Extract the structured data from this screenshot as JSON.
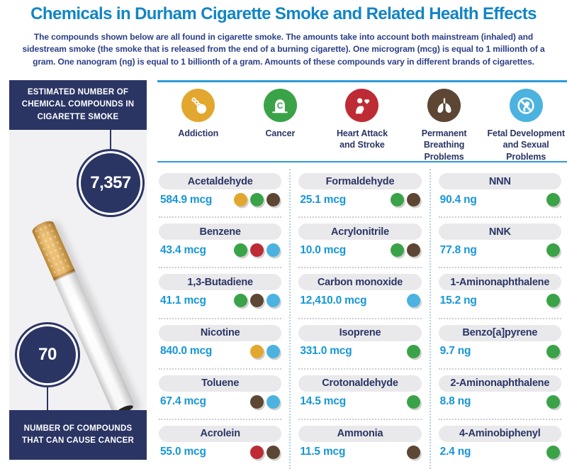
{
  "header": {
    "title": "Chemicals in Durham Cigarette Smoke and Related Health Effects",
    "description": "The compounds shown below are all found in cigarette smoke. The amounts take into account both mainstream (inhaled) and sidestream smoke (the smoke that is released from the end of a burning cigarette). One microgram (mcg) is equal to 1 millionth of a gram. One nanogram (ng) is equal to 1 billionth of a gram. Amounts of these compounds vary in different brands of cigarettes."
  },
  "sidebar": {
    "top_box_label": "ESTIMATED NUMBER OF CHEMICAL COMPOUNDS IN CIGARETTE SMOKE",
    "compound_count": "7,357",
    "carcinogen_count": "70",
    "bottom_box_label": "NUMBER OF COMPOUNDS THAT CAN CAUSE CANCER"
  },
  "effect_colors": {
    "addiction": "#E2A72E",
    "cancer": "#3AA348",
    "heart": "#BE2B35",
    "breathing": "#5D4633",
    "fetal": "#4CB2E0"
  },
  "legend": {
    "items": [
      {
        "id": "addiction",
        "label": "Addiction"
      },
      {
        "id": "cancer",
        "label": "Cancer"
      },
      {
        "id": "heart",
        "label": "Heart Attack\nand Stroke"
      },
      {
        "id": "breathing",
        "label": "Permanent\nBreathing\nProblems"
      },
      {
        "id": "fetal",
        "label": "Fetal Development\nand Sexual\nProblems"
      }
    ]
  },
  "columns": [
    {
      "items": [
        {
          "name": "Acetaldehyde",
          "amount": "584.9 mcg",
          "effects": [
            "addiction",
            "cancer",
            "breathing"
          ]
        },
        {
          "name": "Benzene",
          "amount": "43.4 mcg",
          "effects": [
            "cancer",
            "heart",
            "fetal"
          ]
        },
        {
          "name": "1,3-Butadiene",
          "amount": "41.1 mcg",
          "effects": [
            "cancer",
            "breathing",
            "fetal"
          ]
        },
        {
          "name": "Nicotine",
          "amount": "840.0 mcg",
          "effects": [
            "addiction",
            "fetal"
          ]
        },
        {
          "name": "Toluene",
          "amount": "67.4 mcg",
          "effects": [
            "breathing",
            "fetal"
          ]
        },
        {
          "name": "Acrolein",
          "amount": "55.0 mcg",
          "effects": [
            "heart",
            "breathing"
          ]
        }
      ]
    },
    {
      "items": [
        {
          "name": "Formaldehyde",
          "amount": "25.1 mcg",
          "effects": [
            "cancer",
            "breathing"
          ]
        },
        {
          "name": "Acrylonitrile",
          "amount": "10.0 mcg",
          "effects": [
            "cancer",
            "breathing"
          ]
        },
        {
          "name": "Carbon monoxide",
          "amount": "12,410.0 mcg",
          "effects": [
            "fetal"
          ]
        },
        {
          "name": "Isoprene",
          "amount": "331.0 mcg",
          "effects": [
            "cancer"
          ]
        },
        {
          "name": "Crotonaldehyde",
          "amount": "14.5 mcg",
          "effects": [
            "cancer"
          ]
        },
        {
          "name": "Ammonia",
          "amount": "11.5 mcg",
          "effects": [
            "breathing"
          ]
        }
      ]
    },
    {
      "items": [
        {
          "name": "NNN",
          "amount": "90.4 ng",
          "effects": [
            "cancer"
          ]
        },
        {
          "name": "NNK",
          "amount": "77.8 ng",
          "effects": [
            "cancer"
          ]
        },
        {
          "name": "1-Aminonaphthalene",
          "amount": "15.2 ng",
          "effects": [
            "cancer"
          ]
        },
        {
          "name": "Benzo[a]pyrene",
          "amount": "9.7 ng",
          "effects": [
            "cancer"
          ]
        },
        {
          "name": "2-Aminonaphthalene",
          "amount": "8.8 ng",
          "effects": [
            "cancer"
          ]
        },
        {
          "name": "4-Aminobiphenyl",
          "amount": "2.4 ng",
          "effects": [
            "cancer"
          ]
        }
      ]
    }
  ],
  "colors": {
    "title_blue": "#1285C6",
    "body_text_blue": "#2C3F85",
    "navy": "#2B3564",
    "amount_blue": "#1697D6",
    "rule_blue": "#2E9BD6",
    "pill_gray": "#E9E9EC",
    "panel_gray": "#F1F1F3"
  }
}
